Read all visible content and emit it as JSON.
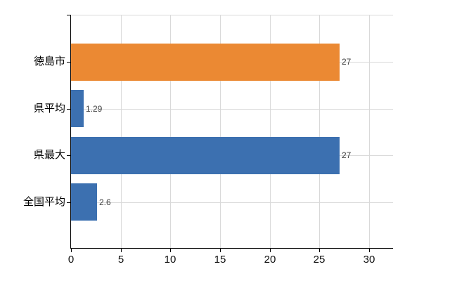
{
  "chart_data": {
    "type": "bar",
    "orientation": "horizontal",
    "categories": [
      "徳島市",
      "県平均",
      "県最大",
      "全国平均"
    ],
    "values": [
      27,
      1.29,
      27,
      2.6
    ],
    "value_labels": [
      "27",
      "1.29",
      "27",
      "2.6"
    ],
    "bar_colors": [
      "#EB8933",
      "#3C70B0",
      "#3C70B0",
      "#3C70B0"
    ],
    "xticks": [
      0,
      5,
      10,
      15,
      20,
      25,
      30
    ],
    "xtick_labels": [
      "0",
      "5",
      "10",
      "15",
      "20",
      "25",
      "30"
    ],
    "xlim": [
      0,
      32.4
    ],
    "grid": true,
    "legend": false
  },
  "colors": {
    "axis": "#000000",
    "gridline": "#d9d9d9",
    "value_label": "#404040",
    "tick_label": "#0d0d0d",
    "background": "#ffffff"
  }
}
